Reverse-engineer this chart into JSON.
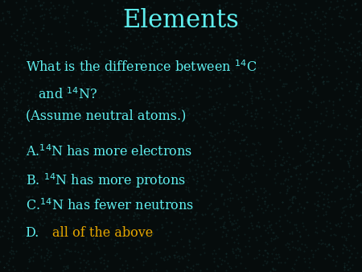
{
  "title": "Elements",
  "title_color": "#5FEFEF",
  "title_fontsize": 22,
  "bg_color": "#060C0C",
  "text_color": "#5FEFEF",
  "highlight_color": "#E8A800",
  "question_line1": "What is the difference between $^{14}$C",
  "question_line2": "   and $^{14}$N?",
  "question_line3": "(Assume neutral atoms.)",
  "answer_A": "A.$^{14}$N has more electrons",
  "answer_B": "B. $^{14}$N has more protons",
  "answer_C": "C.$^{14}$N has fewer neutrons",
  "answer_D_label": "D.",
  "answer_D_text": "all of the above",
  "body_fontsize": 11.5
}
